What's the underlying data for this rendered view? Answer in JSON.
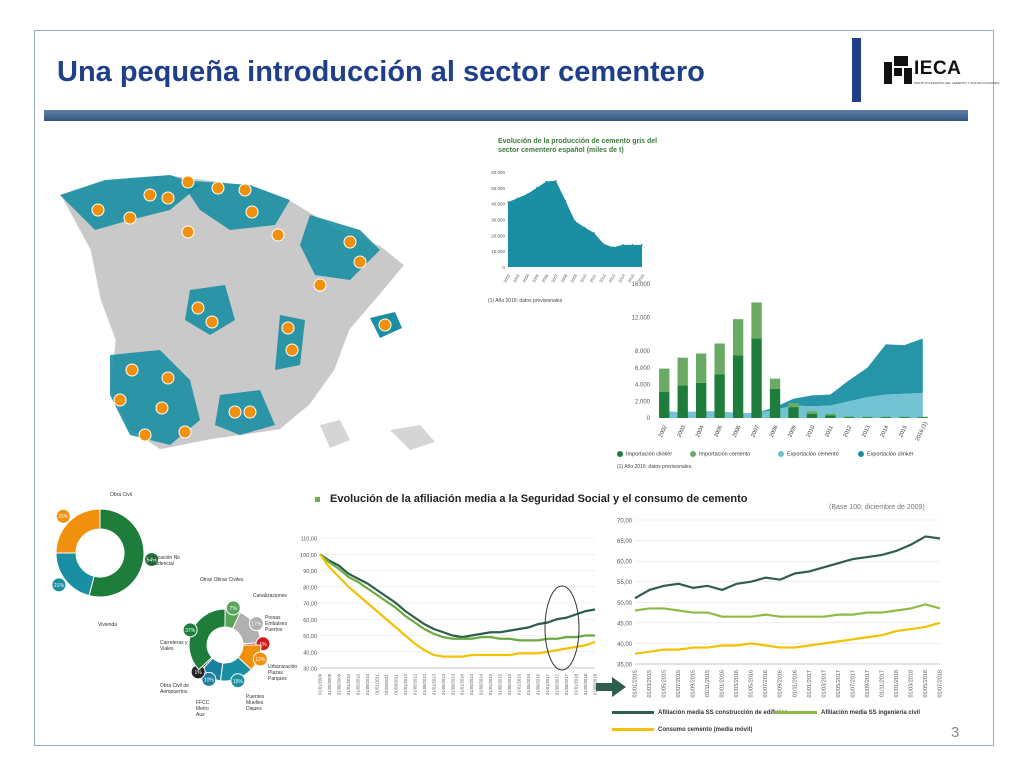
{
  "header": {
    "title": "Una pequeña introducción al sector cementero",
    "logo_text": "IECA",
    "logo_subtitle": "INSTITUTO ESPAÑOL DEL CEMENTO Y SUS APLICACIONES",
    "page_number": "3"
  },
  "colors": {
    "title": "#1f3f8a",
    "teal": "#1a8fa3",
    "green": "#1e7d3a",
    "light_green": "#6aaa64",
    "yellow": "#f2c200",
    "orange": "#f0900c"
  },
  "map": {
    "icon": "factory-icon"
  },
  "donut1": {
    "labels": {
      "obra_civil": "Obra Civil",
      "edificacion": "Edificación No Residencial",
      "vivienda": "Vivienda"
    },
    "chart_data": {
      "type": "pie",
      "categories": [
        "Obra Civil",
        "Edificación No Residencial",
        "Vivienda"
      ],
      "values": [
        54,
        21,
        25
      ],
      "value_labels": [
        "54%",
        "21%",
        "25%"
      ],
      "colors": [
        "#1e7d3a",
        "#1a8fa3",
        "#f0900c"
      ]
    }
  },
  "donut2": {
    "labels": {
      "otras_obras": "Otras Obras Civiles",
      "canalizaciones": "Canalizaciones",
      "presas": "Presas Embalses Puertos",
      "urbanizacion": "Urbanización Plazas Parques",
      "puentes": "Puentes Muelles Diques",
      "ffcc": "FFCC Metro Aux",
      "carreteras": "Carreteras y Viales",
      "obra_civil_aeropuertos": "Obra Civil de Aeropuertos"
    },
    "chart_data": {
      "type": "pie",
      "categories": [
        "Otras Obras Civiles",
        "Canalizaciones",
        "Presas Embalses Puertos",
        "Urbanización Plazas Parques",
        "Puentes Muelles Diques",
        "FFCC Metro Aux",
        "Carreteras y Viales",
        "Obra Civil de Aeropuertos"
      ],
      "values": [
        7,
        17,
        1,
        12,
        15,
        10,
        1,
        37
      ],
      "value_labels": [
        "7%",
        "17%",
        "1%",
        "12%",
        "15%",
        "10%",
        "1%",
        "37%"
      ],
      "colors": [
        "#5aa35a",
        "#b0b0b0",
        "#d11a1a",
        "#f0900c",
        "#1a8fa3",
        "#1a7f9e",
        "#222222",
        "#1e7d3a"
      ]
    }
  },
  "production_chart": {
    "title": "Evolución de la producción de cemento gris del sector cementero español (miles de t)",
    "footnote": "(1) Año 2016: datos provisionales",
    "chart_data": {
      "type": "area",
      "x": [
        "2002",
        "2003",
        "2004",
        "2005",
        "2006",
        "2007",
        "2008",
        "2009",
        "2010",
        "2011",
        "2012",
        "2013",
        "2014",
        "2015",
        "2016"
      ],
      "values": [
        41000,
        43500,
        46000,
        50000,
        54000,
        54500,
        42000,
        29000,
        25000,
        21500,
        14500,
        12500,
        14000,
        14000,
        14000
      ],
      "yticks": [
        "0",
        "10.000",
        "20.000",
        "30.000",
        "40.000",
        "50.000",
        "60.000"
      ],
      "ylim": [
        0,
        60000
      ],
      "color": "#1a8fa3"
    }
  },
  "trade_chart": {
    "footnote": "(1) Año 2016: datos provisionales.",
    "legend": [
      "Importación clinker",
      "Importación cemento",
      "Exportación cemento",
      "Exportación clinker"
    ],
    "chart_data": {
      "type": "bar",
      "categories": [
        "2002",
        "2003",
        "2004",
        "2005",
        "2006",
        "2007",
        "2008",
        "2009",
        "2010",
        "2011",
        "2012",
        "2013",
        "2014",
        "2015",
        "2016 (1)"
      ],
      "series": [
        {
          "name": "Importación clinker",
          "values": [
            3100,
            3900,
            4200,
            5200,
            7500,
            9500,
            3500,
            1300,
            500,
            300,
            100,
            100,
            100,
            100,
            100
          ]
        },
        {
          "name": "Importación cemento",
          "values": [
            2800,
            3300,
            3500,
            3700,
            4300,
            4300,
            1200,
            500,
            300,
            200,
            100,
            50,
            50,
            50,
            50
          ]
        },
        {
          "name": "Exportación cemento",
          "values": [
            800,
            700,
            800,
            800,
            600,
            600,
            1000,
            1500,
            1400,
            1500,
            2000,
            2500,
            2800,
            2900,
            3000
          ]
        },
        {
          "name": "Exportación clinker",
          "values": [
            0,
            0,
            0,
            0,
            0,
            0,
            300,
            800,
            1300,
            1300,
            2500,
            3500,
            6000,
            5800,
            6500
          ]
        }
      ],
      "yticks": [
        "0",
        "2.000",
        "4.000",
        "6.000",
        "8.000",
        "12.000",
        "16.000"
      ],
      "ylim": [
        0,
        16000
      ],
      "colors": [
        "#1e7d3a",
        "#6aaa64",
        "#6cc0d0",
        "#1a8fa3"
      ]
    }
  },
  "affiliation_section": {
    "title": "Evolución de la afiliación media a la Seguridad Social y el consumo de cemento",
    "base_note": "(Base 100: diciembre de 2009)"
  },
  "left_line_chart": {
    "chart_data": {
      "type": "line",
      "x": [
        "01/01/2009",
        "01/05/2009",
        "01/09/2009",
        "01/01/2010",
        "01/05/2010",
        "01/09/2010",
        "01/01/2011",
        "01/05/2011",
        "01/09/2011",
        "01/01/2012",
        "01/05/2012",
        "01/09/2012",
        "01/01/2013",
        "01/05/2013",
        "01/09/2013",
        "01/01/2014",
        "01/05/2014",
        "01/09/2014",
        "01/01/2015",
        "01/05/2015",
        "01/09/2015",
        "01/01/2016",
        "01/05/2016",
        "01/09/2016",
        "01/01/2017",
        "01/05/2017",
        "01/09/2017",
        "01/01/2018",
        "01/05/2018",
        "01/09/2018"
      ],
      "yticks": [
        "30,00",
        "40,00",
        "50,00",
        "60,00",
        "70,00",
        "80,00",
        "90,00",
        "100,00",
        "110,00"
      ],
      "ylim": [
        30,
        110
      ],
      "series": [
        {
          "name": "Afiliación media SS construcción de edificios",
          "values": [
            100,
            96,
            93,
            88,
            85,
            82,
            78,
            74,
            70,
            65,
            61,
            57,
            54,
            52,
            50,
            49,
            50,
            51,
            52,
            52,
            53,
            54,
            55,
            57,
            58,
            60,
            61,
            63,
            65,
            66
          ],
          "color": "#2e5e4e"
        },
        {
          "name": "Afiliación media SS ingeniería civil",
          "values": [
            100,
            95,
            91,
            86,
            83,
            79,
            75,
            71,
            67,
            62,
            58,
            54,
            51,
            49,
            48,
            48,
            48,
            49,
            49,
            48,
            48,
            47,
            47,
            47,
            48,
            48,
            49,
            49,
            50,
            50
          ],
          "color": "#6aaa40"
        },
        {
          "name": "Consumo cemento (media móvil)",
          "values": [
            100,
            92,
            86,
            80,
            75,
            70,
            65,
            60,
            55,
            50,
            45,
            41,
            38,
            37,
            37,
            37,
            38,
            38,
            38,
            38,
            38,
            39,
            39,
            39,
            40,
            41,
            42,
            43,
            44,
            46
          ],
          "color": "#f2c200"
        }
      ]
    }
  },
  "right_line_chart": {
    "chart_data": {
      "type": "line",
      "x": [
        "01/01/2015",
        "01/03/2015",
        "01/05/2015",
        "01/07/2015",
        "01/09/2015",
        "01/11/2015",
        "01/01/2016",
        "01/03/2016",
        "01/05/2016",
        "01/07/2016",
        "01/09/2016",
        "01/11/2016",
        "01/01/2017",
        "01/03/2017",
        "01/05/2017",
        "01/07/2017",
        "01/09/2017",
        "01/11/2017",
        "01/01/2018",
        "01/03/2018",
        "01/05/2018",
        "01/07/2018"
      ],
      "yticks": [
        "35,00",
        "40,00",
        "45,00",
        "50,00",
        "55,00",
        "60,00",
        "65,00",
        "70,00"
      ],
      "ylim": [
        35,
        70
      ],
      "series": [
        {
          "name": "Afiliación media SS construcción de edificios",
          "values": [
            51,
            53,
            54,
            54.5,
            53.5,
            54,
            53,
            54.5,
            55,
            56,
            55.5,
            57,
            57.5,
            58.5,
            59.5,
            60.5,
            61,
            61.5,
            62.5,
            64,
            66,
            65.5
          ],
          "color": "#2e5e4e"
        },
        {
          "name": "Afiliación media SS ingeniería civil",
          "values": [
            48,
            48.5,
            48.5,
            48,
            47.5,
            47.5,
            46.5,
            46.5,
            46.5,
            47,
            46.5,
            46.5,
            46.5,
            46.5,
            47,
            47,
            47.5,
            47.5,
            48,
            48.5,
            49.5,
            48.5
          ],
          "color": "#8dbb45"
        },
        {
          "name": "Consumo cemento (media móvil)",
          "values": [
            37.5,
            38,
            38.5,
            38.5,
            39,
            39,
            39.5,
            39.5,
            40,
            39.5,
            39,
            39,
            39.5,
            40,
            40.5,
            41,
            41.5,
            42,
            43,
            43.5,
            44,
            45
          ],
          "color": "#f2c200"
        }
      ]
    }
  },
  "right_legend": {
    "edificios": "Afiliación media SS construcción de edificios",
    "ingenieria": "Afiliación media SS ingeniería civil",
    "consumo": "Consumo cemento (media móvil)"
  }
}
